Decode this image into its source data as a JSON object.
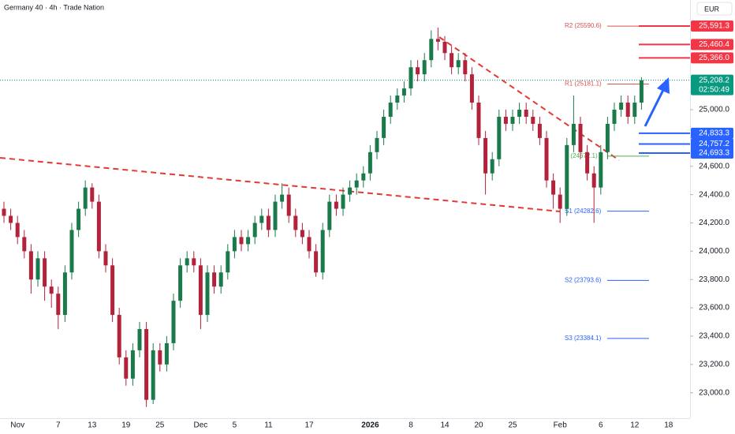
{
  "chart_data": {
    "type": "candlestick",
    "title": "Germany 40 · 4h · Trade Nation",
    "currency": "EUR",
    "up_color": "#1b7a4b",
    "down_color": "#b2223a",
    "ylim": [
      22820,
      25775
    ],
    "yticks": [
      {
        "value": 23000,
        "label": "23,000.0"
      },
      {
        "value": 23200,
        "label": "23,200.0"
      },
      {
        "value": 23400,
        "label": "23,400.0"
      },
      {
        "value": 23600,
        "label": "23,600.0"
      },
      {
        "value": 23800,
        "label": "23,800.0"
      },
      {
        "value": 24000,
        "label": "24,000.0"
      },
      {
        "value": 24200,
        "label": "24,200.0"
      },
      {
        "value": 24400,
        "label": "24,400.0"
      },
      {
        "value": 24600,
        "label": "24,600.0"
      },
      {
        "value": 24800,
        "label": "24,800.0"
      },
      {
        "value": 25000,
        "label": "25,000.0"
      }
    ],
    "categories": [
      null,
      null,
      "Nov",
      null,
      null,
      null,
      null,
      null,
      "7",
      null,
      null,
      null,
      null,
      "13",
      null,
      null,
      null,
      null,
      "19",
      null,
      null,
      null,
      null,
      "25",
      null,
      null,
      null,
      null,
      null,
      "Dec",
      null,
      null,
      null,
      null,
      "5",
      null,
      null,
      null,
      null,
      "11",
      null,
      null,
      null,
      null,
      null,
      "17",
      null,
      null,
      null,
      null,
      null,
      null,
      null,
      null,
      "2026",
      null,
      null,
      null,
      null,
      null,
      "8",
      null,
      null,
      null,
      null,
      "14",
      null,
      null,
      null,
      null,
      "20",
      null,
      null,
      null,
      null,
      "25",
      null,
      null,
      null,
      null,
      null,
      null,
      "Feb",
      null,
      null,
      null,
      null,
      null,
      "6",
      null,
      null,
      null,
      null,
      "12",
      null,
      null,
      null,
      null,
      "18"
    ],
    "candles": [
      [
        24300,
        24350,
        24200,
        24250
      ],
      [
        24250,
        24300,
        24150,
        24200
      ],
      [
        24200,
        24250,
        24050,
        24100
      ],
      [
        24100,
        24150,
        23950,
        24000
      ],
      [
        24000,
        24050,
        23700,
        23800
      ],
      [
        23800,
        24000,
        23750,
        23950
      ],
      [
        23950,
        24000,
        23650,
        23750
      ],
      [
        23750,
        23800,
        23600,
        23700
      ],
      [
        23700,
        23750,
        23450,
        23550
      ],
      [
        23550,
        23900,
        23500,
        23850
      ],
      [
        23850,
        24200,
        23800,
        24150
      ],
      [
        24150,
        24350,
        24100,
        24300
      ],
      [
        24300,
        24500,
        24250,
        24450
      ],
      [
        24450,
        24480,
        24300,
        24350
      ],
      [
        24350,
        24400,
        23950,
        24000
      ],
      [
        24000,
        24050,
        23850,
        23900
      ],
      [
        23900,
        23950,
        23500,
        23550
      ],
      [
        23550,
        23600,
        23200,
        23250
      ],
      [
        23250,
        23300,
        23050,
        23100
      ],
      [
        23100,
        23350,
        23050,
        23300
      ],
      [
        23300,
        23500,
        23250,
        23450
      ],
      [
        23450,
        23500,
        22900,
        22950
      ],
      [
        22950,
        23350,
        22920,
        23300
      ],
      [
        23300,
        23350,
        23150,
        23200
      ],
      [
        23200,
        23400,
        23150,
        23350
      ],
      [
        23350,
        23700,
        23300,
        23650
      ],
      [
        23650,
        23950,
        23600,
        23900
      ],
      [
        23900,
        24000,
        23850,
        23950
      ],
      [
        23950,
        24000,
        23850,
        23900
      ],
      [
        23900,
        23950,
        23450,
        23550
      ],
      [
        23550,
        23900,
        23500,
        23850
      ],
      [
        23850,
        23900,
        23700,
        23750
      ],
      [
        23750,
        23900,
        23700,
        23850
      ],
      [
        23850,
        24050,
        23800,
        24000
      ],
      [
        24000,
        24150,
        23950,
        24100
      ],
      [
        24100,
        24150,
        24000,
        24050
      ],
      [
        24050,
        24150,
        24000,
        24100
      ],
      [
        24100,
        24250,
        24050,
        24200
      ],
      [
        24200,
        24300,
        24150,
        24250
      ],
      [
        24250,
        24300,
        24100,
        24150
      ],
      [
        24150,
        24400,
        24100,
        24350
      ],
      [
        24350,
        24480,
        24300,
        24400
      ],
      [
        24400,
        24450,
        24200,
        24250
      ],
      [
        24250,
        24300,
        24100,
        24150
      ],
      [
        24150,
        24200,
        24050,
        24100
      ],
      [
        24100,
        24150,
        23950,
        24000
      ],
      [
        24000,
        24050,
        23820,
        23850
      ],
      [
        23850,
        24200,
        23800,
        24150
      ],
      [
        24150,
        24400,
        24100,
        24350
      ],
      [
        24350,
        24400,
        24250,
        24300
      ],
      [
        24300,
        24450,
        24250,
        24400
      ],
      [
        24400,
        24500,
        24350,
        24450
      ],
      [
        24450,
        24550,
        24400,
        24500
      ],
      [
        24500,
        24600,
        24450,
        24550
      ],
      [
        24550,
        24750,
        24500,
        24700
      ],
      [
        24700,
        24850,
        24650,
        24800
      ],
      [
        24800,
        25000,
        24750,
        24950
      ],
      [
        24950,
        25100,
        24900,
        25050
      ],
      [
        25050,
        25150,
        25000,
        25100
      ],
      [
        25100,
        25200,
        25050,
        25150
      ],
      [
        25150,
        25350,
        25100,
        25300
      ],
      [
        25300,
        25350,
        25200,
        25250
      ],
      [
        25250,
        25400,
        25200,
        25350
      ],
      [
        25350,
        25560,
        25300,
        25500
      ],
      [
        25500,
        25580,
        25420,
        25480
      ],
      [
        25480,
        25520,
        25350,
        25400
      ],
      [
        25400,
        25450,
        25250,
        25300
      ],
      [
        25300,
        25400,
        25250,
        25350
      ],
      [
        25350,
        25400,
        25200,
        25250
      ],
      [
        25250,
        25300,
        25000,
        25050
      ],
      [
        25050,
        25100,
        24750,
        24800
      ],
      [
        24800,
        24850,
        24400,
        24550
      ],
      [
        24550,
        24700,
        24500,
        24650
      ],
      [
        24650,
        25000,
        24600,
        24950
      ],
      [
        24950,
        25000,
        24850,
        24900
      ],
      [
        24900,
        25000,
        24850,
        24950
      ],
      [
        24950,
        25050,
        24900,
        25000
      ],
      [
        25000,
        25050,
        24900,
        24950
      ],
      [
        24950,
        25000,
        24850,
        24900
      ],
      [
        24900,
        24950,
        24750,
        24800
      ],
      [
        24800,
        24850,
        24450,
        24500
      ],
      [
        24500,
        24550,
        24300,
        24400
      ],
      [
        24400,
        24450,
        24200,
        24300
      ],
      [
        24300,
        24800,
        24250,
        24750
      ],
      [
        24750,
        25100,
        24700,
        24900
      ],
      [
        24900,
        24950,
        24650,
        24700
      ],
      [
        24700,
        24750,
        24500,
        24550
      ],
      [
        24550,
        24600,
        24200,
        24450
      ],
      [
        24450,
        24750,
        24400,
        24700
      ],
      [
        24700,
        24950,
        24650,
        24900
      ],
      [
        24900,
        25050,
        24850,
        25000
      ],
      [
        25000,
        25100,
        24950,
        25050
      ],
      [
        25050,
        25100,
        24900,
        24950
      ],
      [
        24950,
        25100,
        24900,
        25050
      ],
      [
        25050,
        25230,
        25000,
        25208.2
      ],
      null,
      null,
      null,
      null
    ],
    "levels": [
      {
        "label": "R2 (25590.6)",
        "value": 25590.6,
        "color": "#d9534f"
      },
      {
        "label": "R1 (25181.1)",
        "value": 25181.1,
        "color": "#d9534f"
      },
      {
        "label": "P (24672.1)",
        "value": 24672.1,
        "color": "#4caf50"
      },
      {
        "label": "S1 (24282.6)",
        "value": 24282.6,
        "color": "#2962ff"
      },
      {
        "label": "S2 (23793.6)",
        "value": 23793.6,
        "color": "#2962ff"
      },
      {
        "label": "S3 (23384.1)",
        "value": 23384.1,
        "color": "#2962ff"
      }
    ],
    "price_tags": [
      {
        "value": 25591.3,
        "label": "25,591.3",
        "color": "#f23645"
      },
      {
        "value": 25460.4,
        "label": "25,460.4",
        "color": "#f23645"
      },
      {
        "value": 25366.0,
        "label": "25,366.0",
        "color": "#f23645"
      },
      {
        "value": 24833.3,
        "label": "24,833.3",
        "color": "#2962ff"
      },
      {
        "value": 24757.2,
        "label": "24,757.2",
        "color": "#2962ff"
      },
      {
        "value": 24693.3,
        "label": "24,693.3",
        "color": "#2962ff"
      }
    ],
    "last_price": {
      "value": 25208.2,
      "label": "25,208.2",
      "countdown": "02:50:49",
      "color": "#089981"
    }
  }
}
